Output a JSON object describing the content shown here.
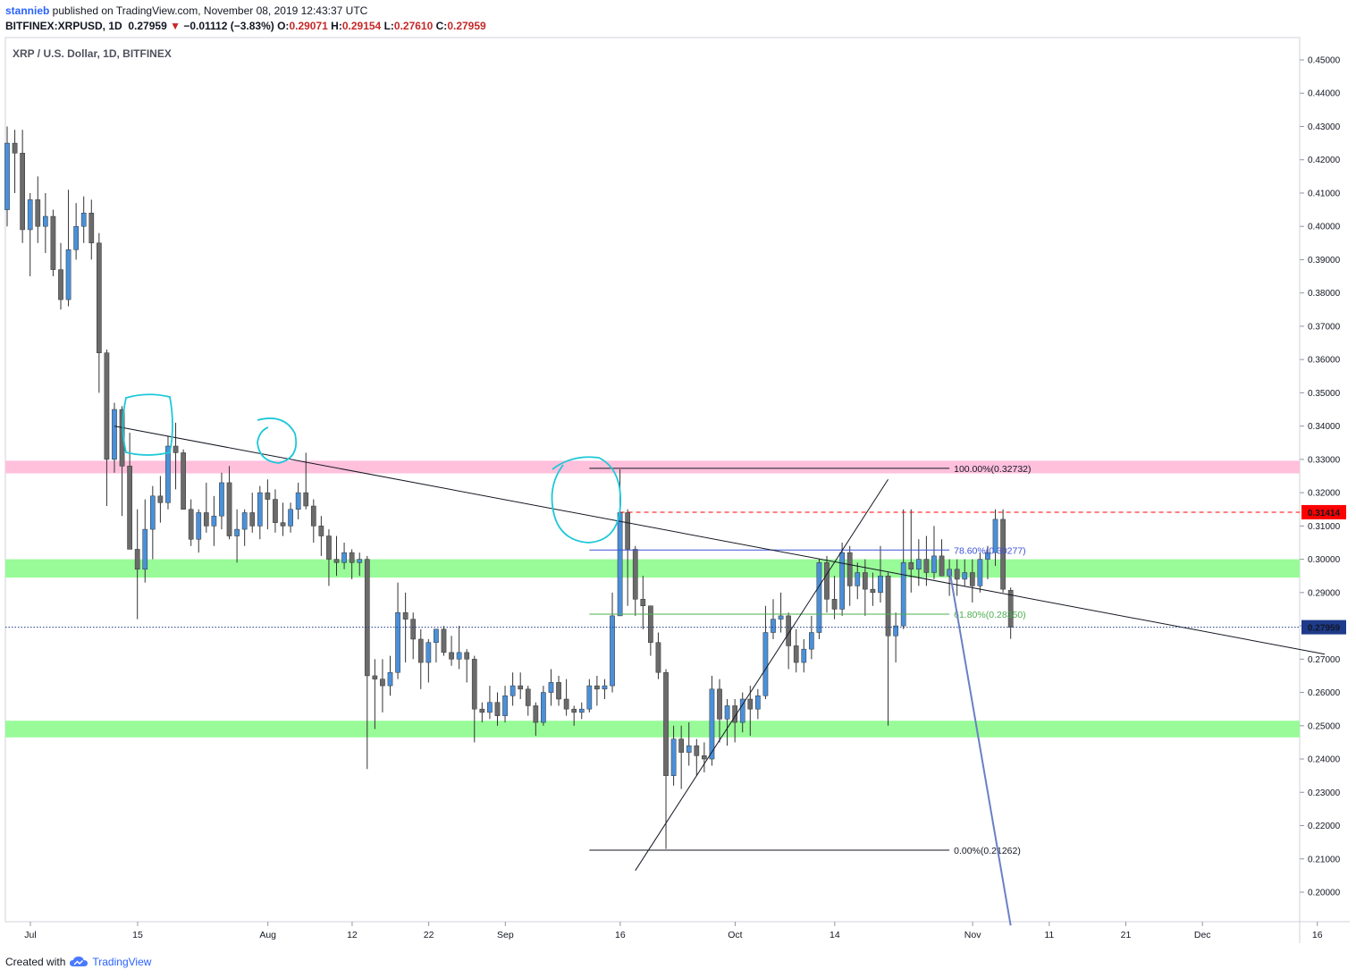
{
  "header": {
    "publisher": "stannieb",
    "published_text": " published on TradingView.com, November 08, 2019 12:43:37 UTC",
    "symbol": "BITFINEX:XRPUSD, 1D",
    "last": "0.27959",
    "change_arrow": "▼",
    "change": "−0.01112 (−3.83%)",
    "o_label": "O:",
    "o_value": "0.29071",
    "h_label": "H:",
    "h_value": "0.29154",
    "l_label": "L:",
    "l_value": "0.27610",
    "c_label": "C:",
    "c_value": "0.27959"
  },
  "footer": {
    "created_with": "Created with",
    "brand": "TradingView",
    "logo_icon": "tradingview-cloud-icon"
  },
  "colors": {
    "bull": "#4a90d9",
    "bear": "#6b6b6b",
    "support_zone": "#98fb98",
    "resistance_zone": "#ffc0dc",
    "highlight_circle": "#1ec8d8",
    "fib_786": "#3f51d8",
    "fib_618": "#4caf50",
    "price_line": "#ff0000",
    "last_price_badge": "#1e3a8a",
    "projection_line": "#6a80c6"
  },
  "chart_data": {
    "type": "candlestick",
    "title": "XRP / U.S. Dollar, 1D, BITFINEX",
    "y_axis": {
      "range": [
        0.191,
        0.4562
      ],
      "ticks": [
        "0.45000",
        "0.44000",
        "0.43000",
        "0.42000",
        "0.41000",
        "0.40000",
        "0.39000",
        "0.38000",
        "0.37000",
        "0.36000",
        "0.35000",
        "0.34000",
        "0.33000",
        "0.32000",
        "0.31000",
        "0.30000",
        "0.29000",
        "0.28000",
        "0.27000",
        "0.26000",
        "0.25000",
        "0.24000",
        "0.23000",
        "0.22000",
        "0.21000",
        "0.20000"
      ]
    },
    "x_axis": {
      "ticks": [
        {
          "label": "Jul",
          "day": 0
        },
        {
          "label": "15",
          "day": 14
        },
        {
          "label": "Aug",
          "day": 31
        },
        {
          "label": "12",
          "day": 42
        },
        {
          "label": "22",
          "day": 52
        },
        {
          "label": "Sep",
          "day": 62
        },
        {
          "label": "16",
          "day": 77
        },
        {
          "label": "Oct",
          "day": 92
        },
        {
          "label": "14",
          "day": 105
        },
        {
          "label": "Nov",
          "day": 123
        },
        {
          "label": "11",
          "day": 133
        },
        {
          "label": "21",
          "day": 143
        },
        {
          "label": "Dec",
          "day": 153
        },
        {
          "label": "16",
          "day": 168
        }
      ]
    },
    "candles": [
      [
        0.405,
        0.43,
        0.4,
        0.425
      ],
      [
        0.425,
        0.429,
        0.41,
        0.422
      ],
      [
        0.422,
        0.429,
        0.395,
        0.399
      ],
      [
        0.399,
        0.41,
        0.385,
        0.408
      ],
      [
        0.408,
        0.415,
        0.395,
        0.4
      ],
      [
        0.4,
        0.41,
        0.392,
        0.403
      ],
      [
        0.403,
        0.405,
        0.385,
        0.387
      ],
      [
        0.387,
        0.395,
        0.375,
        0.378
      ],
      [
        0.378,
        0.411,
        0.376,
        0.393
      ],
      [
        0.393,
        0.407,
        0.39,
        0.4
      ],
      [
        0.4,
        0.409,
        0.395,
        0.404
      ],
      [
        0.404,
        0.408,
        0.39,
        0.395
      ],
      [
        0.395,
        0.398,
        0.35,
        0.362
      ],
      [
        0.362,
        0.363,
        0.316,
        0.33
      ],
      [
        0.33,
        0.347,
        0.326,
        0.345
      ],
      [
        0.345,
        0.346,
        0.313,
        0.328
      ],
      [
        0.328,
        0.338,
        0.305,
        0.303
      ],
      [
        0.303,
        0.315,
        0.282,
        0.297
      ],
      [
        0.297,
        0.318,
        0.293,
        0.309
      ],
      [
        0.309,
        0.322,
        0.3,
        0.319
      ],
      [
        0.319,
        0.325,
        0.311,
        0.317
      ],
      [
        0.317,
        0.337,
        0.315,
        0.334
      ],
      [
        0.334,
        0.341,
        0.321,
        0.332
      ],
      [
        0.332,
        0.333,
        0.315,
        0.315
      ],
      [
        0.315,
        0.318,
        0.304,
        0.306
      ],
      [
        0.306,
        0.315,
        0.302,
        0.314
      ],
      [
        0.314,
        0.323,
        0.308,
        0.31
      ],
      [
        0.31,
        0.319,
        0.304,
        0.313
      ],
      [
        0.313,
        0.326,
        0.309,
        0.323
      ],
      [
        0.323,
        0.328,
        0.306,
        0.307
      ],
      [
        0.307,
        0.315,
        0.299,
        0.309
      ],
      [
        0.309,
        0.315,
        0.304,
        0.314
      ],
      [
        0.314,
        0.32,
        0.308,
        0.31
      ],
      [
        0.31,
        0.322,
        0.306,
        0.32
      ],
      [
        0.32,
        0.324,
        0.309,
        0.318
      ],
      [
        0.318,
        0.321,
        0.308,
        0.311
      ],
      [
        0.311,
        0.317,
        0.307,
        0.31
      ],
      [
        0.31,
        0.317,
        0.308,
        0.315
      ],
      [
        0.315,
        0.323,
        0.312,
        0.32
      ],
      [
        0.32,
        0.332,
        0.315,
        0.316
      ],
      [
        0.316,
        0.318,
        0.305,
        0.31
      ],
      [
        0.31,
        0.313,
        0.301,
        0.307
      ],
      [
        0.307,
        0.309,
        0.292,
        0.3
      ],
      [
        0.3,
        0.307,
        0.295,
        0.299
      ],
      [
        0.299,
        0.305,
        0.297,
        0.302
      ],
      [
        0.302,
        0.303,
        0.294,
        0.299
      ],
      [
        0.299,
        0.302,
        0.295,
        0.3
      ],
      [
        0.3,
        0.301,
        0.237,
        0.265
      ],
      [
        0.265,
        0.27,
        0.249,
        0.264
      ],
      [
        0.264,
        0.27,
        0.254,
        0.262
      ],
      [
        0.262,
        0.271,
        0.259,
        0.266
      ],
      [
        0.266,
        0.293,
        0.264,
        0.284
      ],
      [
        0.284,
        0.29,
        0.269,
        0.282
      ],
      [
        0.282,
        0.284,
        0.27,
        0.276
      ],
      [
        0.276,
        0.279,
        0.261,
        0.269
      ],
      [
        0.269,
        0.276,
        0.263,
        0.275
      ],
      [
        0.275,
        0.279,
        0.269,
        0.279
      ],
      [
        0.279,
        0.28,
        0.271,
        0.272
      ],
      [
        0.272,
        0.277,
        0.268,
        0.27
      ],
      [
        0.27,
        0.28,
        0.267,
        0.272
      ],
      [
        0.272,
        0.273,
        0.263,
        0.27
      ],
      [
        0.27,
        0.271,
        0.245,
        0.255
      ],
      [
        0.255,
        0.257,
        0.251,
        0.254
      ],
      [
        0.254,
        0.262,
        0.252,
        0.257
      ],
      [
        0.257,
        0.26,
        0.25,
        0.253
      ],
      [
        0.253,
        0.262,
        0.251,
        0.259
      ],
      [
        0.259,
        0.266,
        0.256,
        0.262
      ],
      [
        0.262,
        0.266,
        0.258,
        0.261
      ],
      [
        0.261,
        0.262,
        0.253,
        0.256
      ],
      [
        0.256,
        0.257,
        0.247,
        0.251
      ],
      [
        0.251,
        0.262,
        0.25,
        0.26
      ],
      [
        0.26,
        0.267,
        0.256,
        0.263
      ],
      [
        0.263,
        0.265,
        0.256,
        0.258
      ],
      [
        0.258,
        0.264,
        0.253,
        0.255
      ],
      [
        0.255,
        0.256,
        0.25,
        0.254
      ],
      [
        0.254,
        0.257,
        0.252,
        0.255
      ],
      [
        0.255,
        0.264,
        0.254,
        0.262
      ],
      [
        0.262,
        0.265,
        0.256,
        0.261
      ],
      [
        0.261,
        0.264,
        0.258,
        0.262
      ],
      [
        0.262,
        0.29,
        0.26,
        0.283
      ],
      [
        0.283,
        0.327,
        0.283,
        0.314
      ],
      [
        0.314,
        0.315,
        0.286,
        0.303
      ],
      [
        0.303,
        0.304,
        0.283,
        0.288
      ],
      [
        0.288,
        0.295,
        0.279,
        0.286
      ],
      [
        0.286,
        0.286,
        0.271,
        0.275
      ],
      [
        0.275,
        0.278,
        0.264,
        0.266
      ],
      [
        0.266,
        0.267,
        0.213,
        0.235
      ],
      [
        0.235,
        0.25,
        0.232,
        0.246
      ],
      [
        0.246,
        0.25,
        0.231,
        0.242
      ],
      [
        0.242,
        0.251,
        0.238,
        0.244
      ],
      [
        0.244,
        0.246,
        0.235,
        0.241
      ],
      [
        0.241,
        0.245,
        0.236,
        0.24
      ],
      [
        0.24,
        0.265,
        0.238,
        0.261
      ],
      [
        0.261,
        0.264,
        0.245,
        0.252
      ],
      [
        0.252,
        0.258,
        0.244,
        0.256
      ],
      [
        0.256,
        0.258,
        0.245,
        0.251
      ],
      [
        0.251,
        0.26,
        0.248,
        0.258
      ],
      [
        0.258,
        0.262,
        0.247,
        0.255
      ],
      [
        0.255,
        0.261,
        0.252,
        0.259
      ],
      [
        0.259,
        0.286,
        0.258,
        0.278
      ],
      [
        0.278,
        0.288,
        0.276,
        0.282
      ],
      [
        0.282,
        0.29,
        0.278,
        0.283
      ],
      [
        0.283,
        0.284,
        0.267,
        0.274
      ],
      [
        0.274,
        0.279,
        0.266,
        0.269
      ],
      [
        0.269,
        0.276,
        0.266,
        0.273
      ],
      [
        0.273,
        0.283,
        0.27,
        0.278
      ],
      [
        0.278,
        0.3,
        0.276,
        0.299
      ],
      [
        0.299,
        0.301,
        0.284,
        0.288
      ],
      [
        0.288,
        0.295,
        0.282,
        0.285
      ],
      [
        0.285,
        0.305,
        0.283,
        0.302
      ],
      [
        0.302,
        0.304,
        0.286,
        0.292
      ],
      [
        0.292,
        0.299,
        0.288,
        0.296
      ],
      [
        0.296,
        0.3,
        0.283,
        0.291
      ],
      [
        0.291,
        0.296,
        0.286,
        0.29
      ],
      [
        0.29,
        0.304,
        0.287,
        0.295
      ],
      [
        0.295,
        0.296,
        0.25,
        0.277
      ],
      [
        0.277,
        0.284,
        0.269,
        0.28
      ],
      [
        0.28,
        0.315,
        0.279,
        0.299
      ],
      [
        0.299,
        0.315,
        0.29,
        0.297
      ],
      [
        0.297,
        0.306,
        0.292,
        0.3
      ],
      [
        0.3,
        0.307,
        0.292,
        0.296
      ],
      [
        0.296,
        0.31,
        0.294,
        0.301
      ],
      [
        0.301,
        0.306,
        0.295,
        0.295
      ],
      [
        0.295,
        0.3,
        0.289,
        0.297
      ],
      [
        0.297,
        0.3,
        0.289,
        0.294
      ],
      [
        0.294,
        0.3,
        0.292,
        0.296
      ],
      [
        0.296,
        0.3,
        0.287,
        0.292
      ],
      [
        0.292,
        0.302,
        0.29,
        0.3
      ],
      [
        0.3,
        0.304,
        0.294,
        0.302
      ],
      [
        0.302,
        0.315,
        0.298,
        0.312
      ],
      [
        0.312,
        0.315,
        0.29,
        0.291
      ],
      [
        0.2907,
        0.2915,
        0.2761,
        0.2796
      ]
    ],
    "zones": [
      {
        "type": "resistance",
        "from": 0.3258,
        "to": 0.3296
      },
      {
        "type": "support",
        "from": 0.2945,
        "to": 0.3
      },
      {
        "type": "support",
        "from": 0.2465,
        "to": 0.2515
      }
    ],
    "fibonacci": [
      {
        "label": "100.00%(0.32732)",
        "value": 0.32732
      },
      {
        "label": "78.60%(0.30277)",
        "value": 0.30277
      },
      {
        "label": "61.80%(0.28350)",
        "value": 0.2835
      },
      {
        "label": "0.00%(0.21262)",
        "value": 0.21262
      }
    ],
    "trendlines": [
      {
        "name": "descending-trendline",
        "points": [
          [
            14,
            0.34
          ],
          [
            172,
            0.2715
          ]
        ]
      },
      {
        "name": "ascending-trendline",
        "points": [
          [
            82,
            0.2065
          ],
          [
            115,
            0.324
          ]
        ]
      },
      {
        "name": "projection-line",
        "points": [
          [
            123,
            0.297
          ],
          [
            131,
            0.19
          ]
        ]
      }
    ],
    "price_lines": [
      {
        "label": "0.31414",
        "value": 0.31414,
        "style": "dashed-red"
      },
      {
        "label": "0.27959",
        "value": 0.27959,
        "style": "dotted-blue-last"
      }
    ]
  }
}
